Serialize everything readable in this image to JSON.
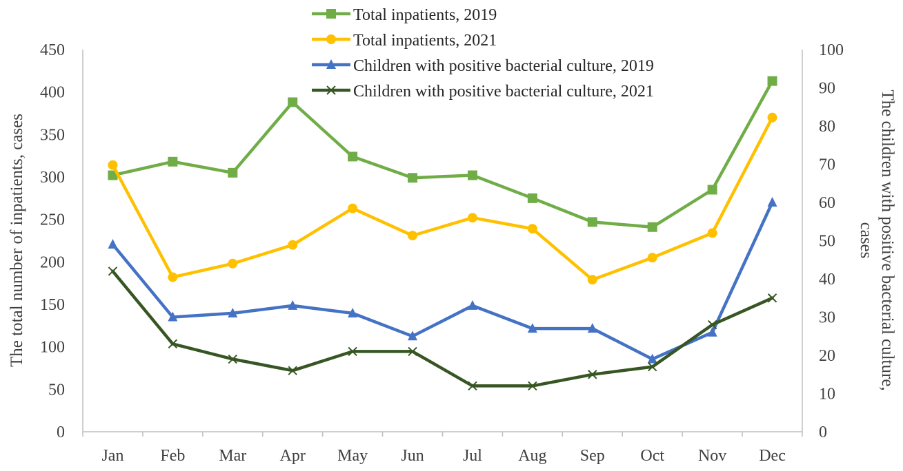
{
  "chart_data": {
    "type": "line",
    "title": "",
    "categories": [
      "Jan",
      "Feb",
      "Mar",
      "Apr",
      "May",
      "Jun",
      "Jul",
      "Aug",
      "Sep",
      "Oct",
      "Nov",
      "Dec"
    ],
    "ylabel_left": "The total number of inpatients, cases",
    "ylabel_right_line1": "The children with positive bacterial culture,",
    "ylabel_right_line2": "cases",
    "ylim_left": [
      0,
      450
    ],
    "ylim_right": [
      0,
      100
    ],
    "yticks_left": [
      0,
      50,
      100,
      150,
      200,
      250,
      300,
      350,
      400,
      450
    ],
    "yticks_right": [
      0,
      10,
      20,
      30,
      40,
      50,
      60,
      70,
      80,
      90,
      100
    ],
    "grid": false,
    "legend_position": "top-center",
    "series": [
      {
        "name": "Total inpatients, 2019",
        "axis": "left",
        "color": "#70AD47",
        "marker": "square",
        "values": [
          302,
          318,
          305,
          388,
          324,
          299,
          302,
          275,
          247,
          241,
          285,
          413
        ]
      },
      {
        "name": "Total inpatients, 2021",
        "axis": "left",
        "color": "#FFC000",
        "marker": "circle",
        "values": [
          314,
          182,
          198,
          220,
          263,
          231,
          252,
          239,
          179,
          205,
          234,
          370
        ]
      },
      {
        "name": "Children with positive bacterial culture, 2019",
        "axis": "right",
        "color": "#4472C4",
        "marker": "triangle",
        "values": [
          49,
          30,
          31,
          33,
          31,
          25,
          33,
          27,
          27,
          19,
          26,
          60
        ]
      },
      {
        "name": "Children with positive bacterial culture, 2021",
        "axis": "right",
        "color": "#375623",
        "marker": "x",
        "values": [
          42,
          23,
          19,
          16,
          21,
          21,
          12,
          12,
          15,
          17,
          28,
          35
        ]
      }
    ]
  }
}
